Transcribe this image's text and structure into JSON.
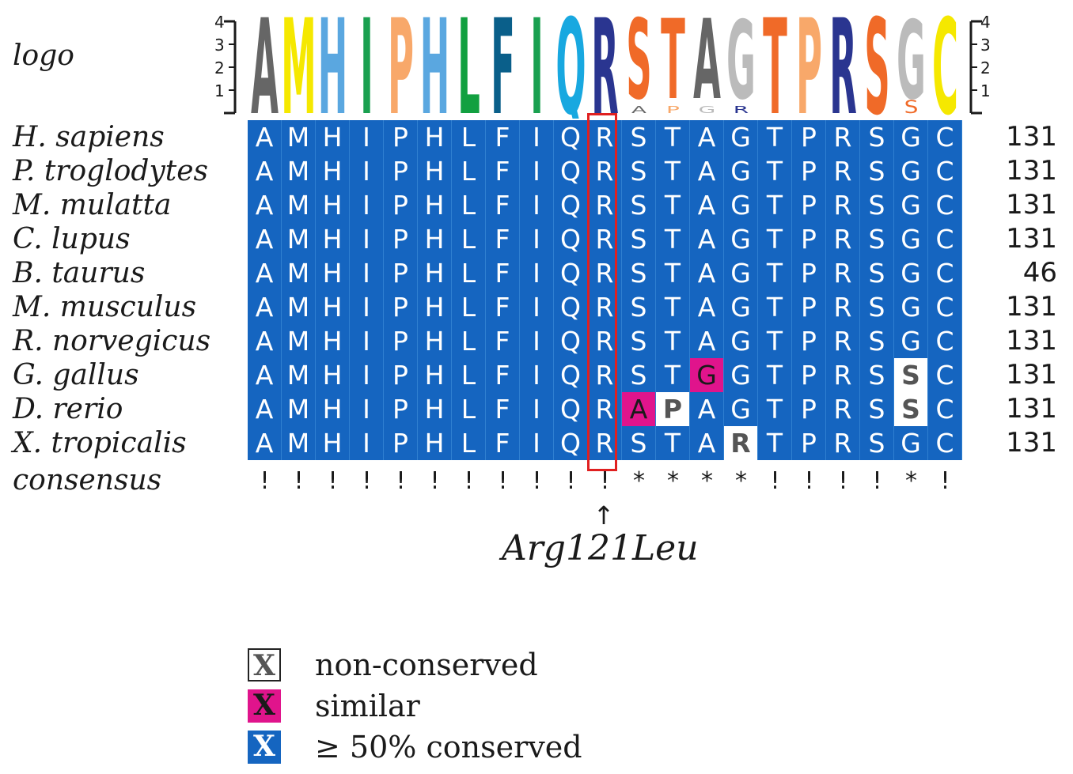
{
  "logo_label": "logo",
  "logo_axis_ticks": [
    "4",
    "3",
    "2",
    "1"
  ],
  "logo_top_letters": [
    {
      "letter": "A",
      "color": "#666666"
    },
    {
      "letter": "M",
      "color": "#f5e800"
    },
    {
      "letter": "H",
      "color": "#5aa7e0"
    },
    {
      "letter": "I",
      "color": "#1aa050"
    },
    {
      "letter": "P",
      "color": "#f8a86a"
    },
    {
      "letter": "H",
      "color": "#5aa7e0"
    },
    {
      "letter": "L",
      "color": "#12a040"
    },
    {
      "letter": "F",
      "color": "#0a5f8a"
    },
    {
      "letter": "I",
      "color": "#1aa050"
    },
    {
      "letter": "Q",
      "color": "#18a8e0"
    },
    {
      "letter": "R",
      "color": "#2a3590"
    },
    {
      "letter": "S",
      "color": "#f06a28"
    },
    {
      "letter": "T",
      "color": "#f06a28"
    },
    {
      "letter": "A",
      "color": "#666666"
    },
    {
      "letter": "G",
      "color": "#bbbbbb"
    },
    {
      "letter": "T",
      "color": "#f06a28"
    },
    {
      "letter": "P",
      "color": "#f8a86a"
    },
    {
      "letter": "R",
      "color": "#2a3590"
    },
    {
      "letter": "S",
      "color": "#f06a28"
    },
    {
      "letter": "G",
      "color": "#bbbbbb"
    },
    {
      "letter": "C",
      "color": "#f5e800"
    }
  ],
  "logo_minor_letters": [
    {
      "col": 11,
      "letter": "A",
      "color": "#666666"
    },
    {
      "col": 12,
      "letter": "P",
      "color": "#f8a86a"
    },
    {
      "col": 13,
      "letter": "G",
      "color": "#bbbbbb"
    },
    {
      "col": 14,
      "letter": "R",
      "color": "#2a3590"
    },
    {
      "col": 19,
      "letter": "S",
      "color": "#f06a28"
    }
  ],
  "species": [
    {
      "name": "H. sapiens",
      "count": "131",
      "residues": [
        "A",
        "M",
        "H",
        "I",
        "P",
        "H",
        "L",
        "F",
        "I",
        "Q",
        "R",
        "S",
        "T",
        "A",
        "G",
        "T",
        "P",
        "R",
        "S",
        "G",
        "C"
      ],
      "classes": [
        "c",
        "c",
        "c",
        "c",
        "c",
        "c",
        "c",
        "c",
        "c",
        "c",
        "c",
        "c",
        "c",
        "c",
        "c",
        "c",
        "c",
        "c",
        "c",
        "c",
        "c"
      ]
    },
    {
      "name": "P. troglodytes",
      "count": "131",
      "residues": [
        "A",
        "M",
        "H",
        "I",
        "P",
        "H",
        "L",
        "F",
        "I",
        "Q",
        "R",
        "S",
        "T",
        "A",
        "G",
        "T",
        "P",
        "R",
        "S",
        "G",
        "C"
      ],
      "classes": [
        "c",
        "c",
        "c",
        "c",
        "c",
        "c",
        "c",
        "c",
        "c",
        "c",
        "c",
        "c",
        "c",
        "c",
        "c",
        "c",
        "c",
        "c",
        "c",
        "c",
        "c"
      ]
    },
    {
      "name": "M. mulatta",
      "count": "131",
      "residues": [
        "A",
        "M",
        "H",
        "I",
        "P",
        "H",
        "L",
        "F",
        "I",
        "Q",
        "R",
        "S",
        "T",
        "A",
        "G",
        "T",
        "P",
        "R",
        "S",
        "G",
        "C"
      ],
      "classes": [
        "c",
        "c",
        "c",
        "c",
        "c",
        "c",
        "c",
        "c",
        "c",
        "c",
        "c",
        "c",
        "c",
        "c",
        "c",
        "c",
        "c",
        "c",
        "c",
        "c",
        "c"
      ]
    },
    {
      "name": "C. lupus",
      "count": "131",
      "residues": [
        "A",
        "M",
        "H",
        "I",
        "P",
        "H",
        "L",
        "F",
        "I",
        "Q",
        "R",
        "S",
        "T",
        "A",
        "G",
        "T",
        "P",
        "R",
        "S",
        "G",
        "C"
      ],
      "classes": [
        "c",
        "c",
        "c",
        "c",
        "c",
        "c",
        "c",
        "c",
        "c",
        "c",
        "c",
        "c",
        "c",
        "c",
        "c",
        "c",
        "c",
        "c",
        "c",
        "c",
        "c"
      ]
    },
    {
      "name": "B. taurus",
      "count": "46",
      "residues": [
        "A",
        "M",
        "H",
        "I",
        "P",
        "H",
        "L",
        "F",
        "I",
        "Q",
        "R",
        "S",
        "T",
        "A",
        "G",
        "T",
        "P",
        "R",
        "S",
        "G",
        "C"
      ],
      "classes": [
        "c",
        "c",
        "c",
        "c",
        "c",
        "c",
        "c",
        "c",
        "c",
        "c",
        "c",
        "c",
        "c",
        "c",
        "c",
        "c",
        "c",
        "c",
        "c",
        "c",
        "c"
      ]
    },
    {
      "name": "M. musculus",
      "count": "131",
      "residues": [
        "A",
        "M",
        "H",
        "I",
        "P",
        "H",
        "L",
        "F",
        "I",
        "Q",
        "R",
        "S",
        "T",
        "A",
        "G",
        "T",
        "P",
        "R",
        "S",
        "G",
        "C"
      ],
      "classes": [
        "c",
        "c",
        "c",
        "c",
        "c",
        "c",
        "c",
        "c",
        "c",
        "c",
        "c",
        "c",
        "c",
        "c",
        "c",
        "c",
        "c",
        "c",
        "c",
        "c",
        "c"
      ]
    },
    {
      "name": "R. norvegicus",
      "count": "131",
      "residues": [
        "A",
        "M",
        "H",
        "I",
        "P",
        "H",
        "L",
        "F",
        "I",
        "Q",
        "R",
        "S",
        "T",
        "A",
        "G",
        "T",
        "P",
        "R",
        "S",
        "G",
        "C"
      ],
      "classes": [
        "c",
        "c",
        "c",
        "c",
        "c",
        "c",
        "c",
        "c",
        "c",
        "c",
        "c",
        "c",
        "c",
        "c",
        "c",
        "c",
        "c",
        "c",
        "c",
        "c",
        "c"
      ]
    },
    {
      "name": "G. gallus",
      "count": "131",
      "residues": [
        "A",
        "M",
        "H",
        "I",
        "P",
        "H",
        "L",
        "F",
        "I",
        "Q",
        "R",
        "S",
        "T",
        "G",
        "G",
        "T",
        "P",
        "R",
        "S",
        "S",
        "C"
      ],
      "classes": [
        "c",
        "c",
        "c",
        "c",
        "c",
        "c",
        "c",
        "c",
        "c",
        "c",
        "c",
        "c",
        "c",
        "s",
        "c",
        "c",
        "c",
        "c",
        "c",
        "n",
        "c"
      ]
    },
    {
      "name": "D. rerio",
      "count": "131",
      "residues": [
        "A",
        "M",
        "H",
        "I",
        "P",
        "H",
        "L",
        "F",
        "I",
        "Q",
        "R",
        "A",
        "P",
        "A",
        "G",
        "T",
        "P",
        "R",
        "S",
        "S",
        "C"
      ],
      "classes": [
        "c",
        "c",
        "c",
        "c",
        "c",
        "c",
        "c",
        "c",
        "c",
        "c",
        "c",
        "s",
        "n",
        "c",
        "c",
        "c",
        "c",
        "c",
        "c",
        "n",
        "c"
      ]
    },
    {
      "name": "X. tropicalis",
      "count": "131",
      "residues": [
        "A",
        "M",
        "H",
        "I",
        "P",
        "H",
        "L",
        "F",
        "I",
        "Q",
        "R",
        "S",
        "T",
        "A",
        "R",
        "T",
        "P",
        "R",
        "S",
        "G",
        "C"
      ],
      "classes": [
        "c",
        "c",
        "c",
        "c",
        "c",
        "c",
        "c",
        "c",
        "c",
        "c",
        "c",
        "c",
        "c",
        "c",
        "n",
        "c",
        "c",
        "c",
        "c",
        "c",
        "c"
      ]
    }
  ],
  "consensus_label": "consensus",
  "consensus_marks": [
    "!",
    "!",
    "!",
    "!",
    "!",
    "!",
    "!",
    "!",
    "!",
    "!",
    "!",
    "*",
    "*",
    "*",
    "*",
    "!",
    "!",
    "!",
    "!",
    "*",
    "!"
  ],
  "mutation": {
    "arrow": "↑",
    "label": "Arg121Leu"
  },
  "legend": [
    {
      "symbol": "X",
      "text": "non-conserved"
    },
    {
      "symbol": "X",
      "text": "similar"
    },
    {
      "symbol": "X",
      "text": "≥ 50% conserved"
    }
  ],
  "colors": {
    "conserved": "#1565c0",
    "similar": "#e0148c",
    "non_conserved": "#ffffff",
    "highlight": "#e02020"
  }
}
